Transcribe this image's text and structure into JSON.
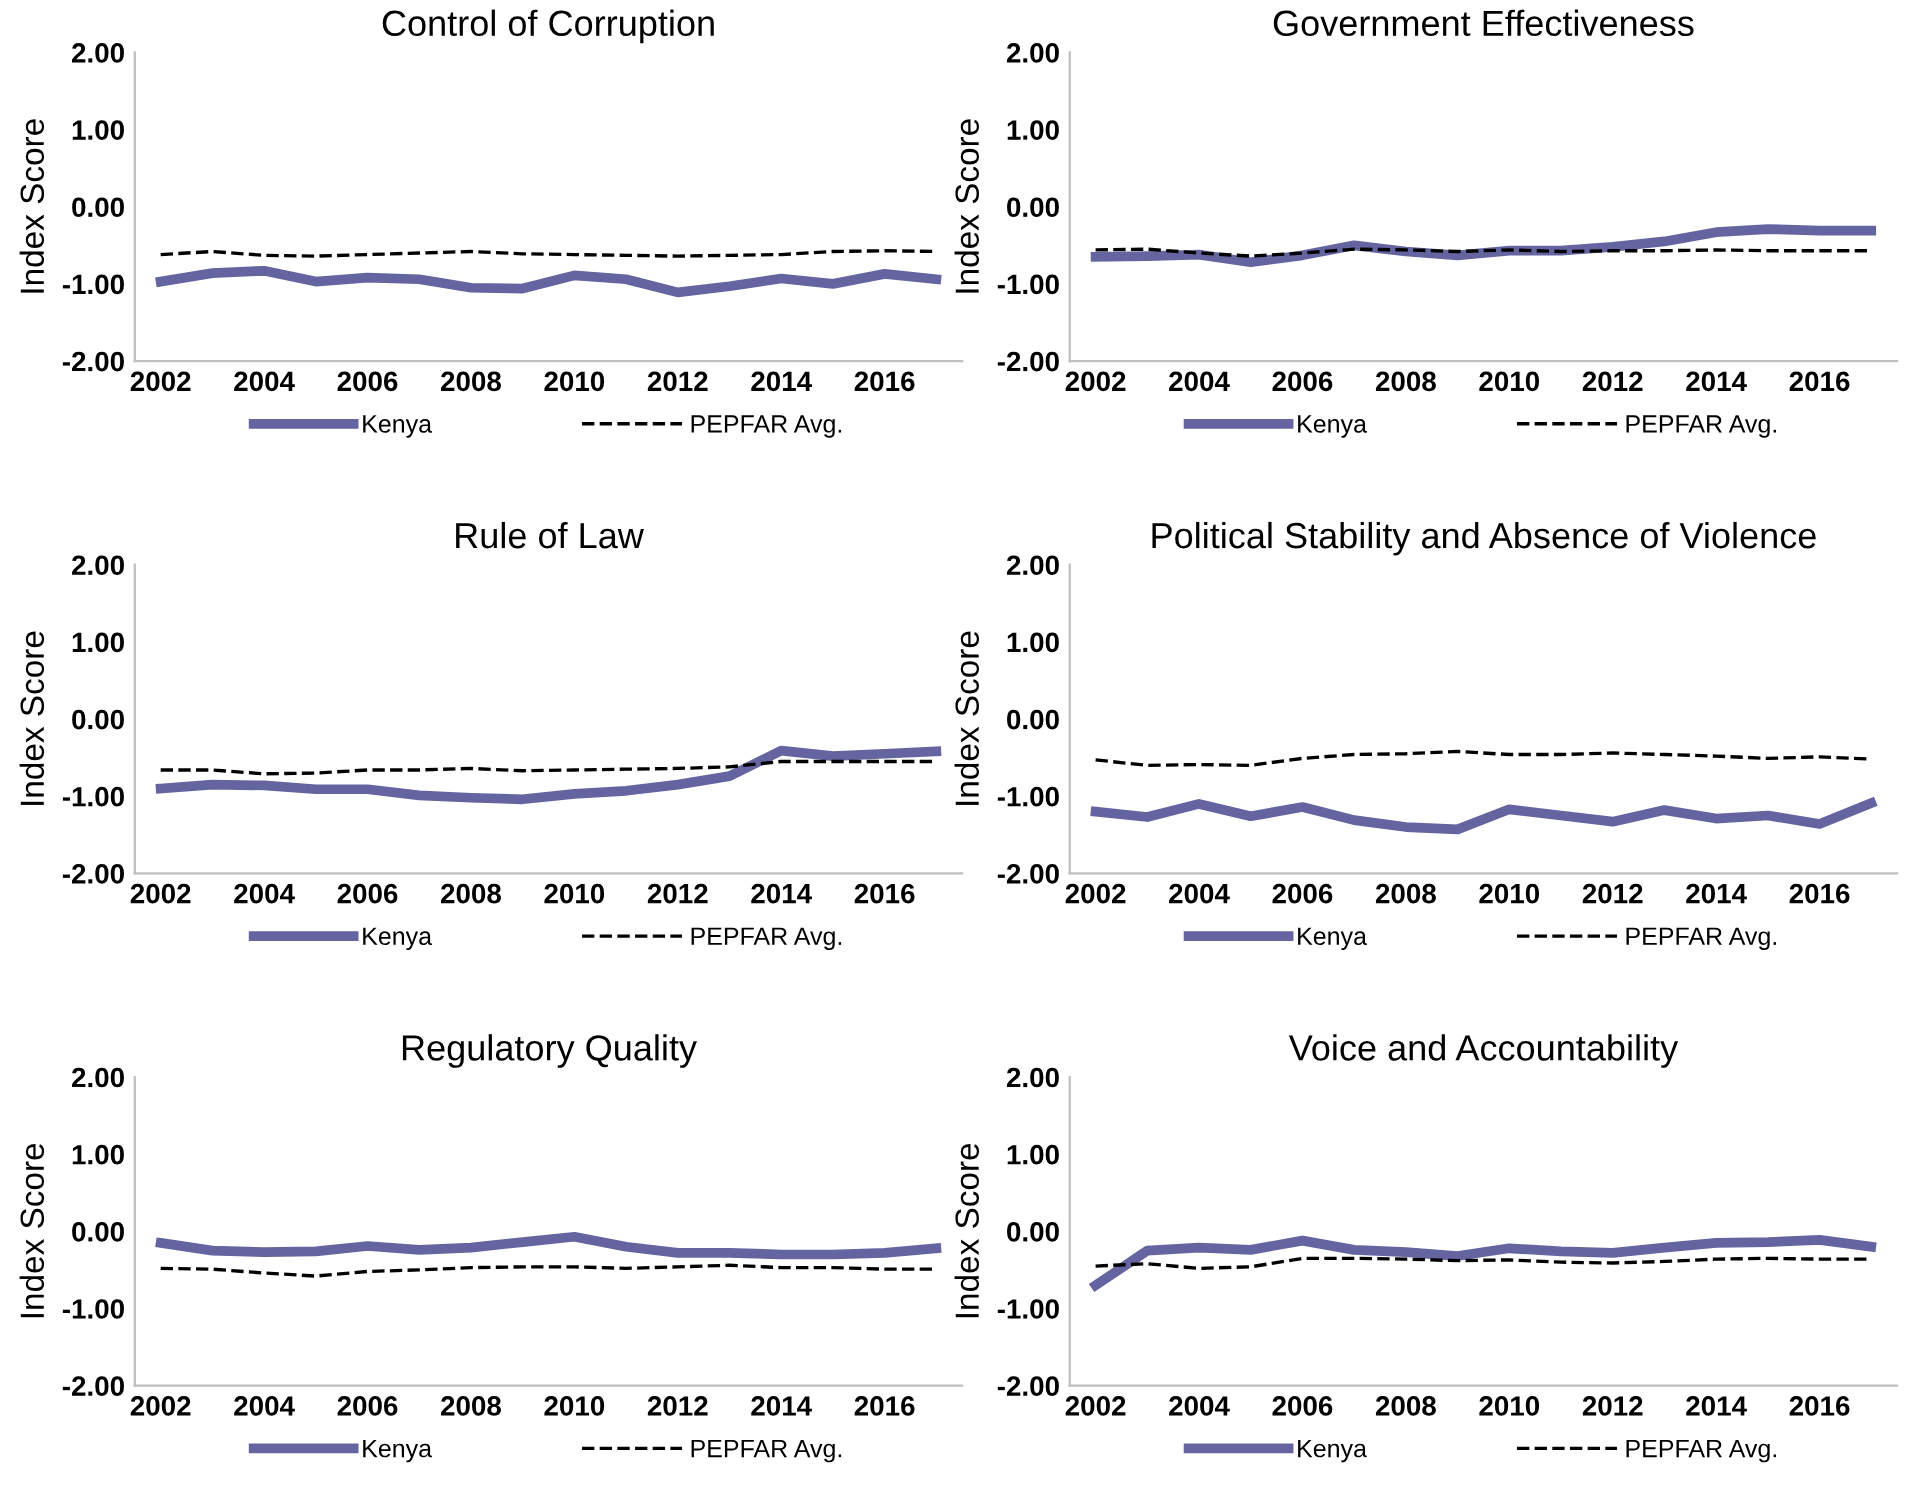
{
  "chart_data": [
    {
      "type": "line",
      "title": "Control of Corruption",
      "ylabel": "Index Score",
      "categories": [
        "2002",
        null,
        "2004",
        null,
        "2006",
        null,
        "2008",
        null,
        "2010",
        null,
        "2012",
        null,
        "2014",
        null,
        "2016",
        null
      ],
      "ylim": [
        -2,
        2
      ],
      "yticks": [
        {
          "value": 2,
          "label": "2.00"
        },
        {
          "value": 1,
          "label": "1.00"
        },
        {
          "value": 0,
          "label": "0.00"
        },
        {
          "value": -1,
          "label": "-1.00"
        },
        {
          "value": -2,
          "label": "-2.00"
        }
      ],
      "legend": "bottom",
      "series": [
        {
          "name": "Kenya",
          "color": "#6464a0",
          "line_style": "solid",
          "values": [
            -0.97,
            -0.86,
            -0.83,
            -0.97,
            -0.92,
            -0.94,
            -1.05,
            -1.06,
            -0.89,
            -0.94,
            -1.11,
            -1.03,
            -0.93,
            -1.0,
            -0.87,
            -0.94
          ]
        },
        {
          "name": "PEPFAR Avg.",
          "color": "#000000",
          "line_style": "dashed",
          "values": [
            -0.62,
            -0.58,
            -0.63,
            -0.64,
            -0.62,
            -0.6,
            -0.58,
            -0.61,
            -0.62,
            -0.63,
            -0.64,
            -0.63,
            -0.62,
            -0.58,
            -0.57,
            -0.58
          ]
        }
      ]
    },
    {
      "type": "line",
      "title": "Government Effectiveness",
      "ylabel": "Index Score",
      "categories": [
        "2002",
        null,
        "2004",
        null,
        "2006",
        null,
        "2008",
        null,
        "2010",
        null,
        "2012",
        null,
        "2014",
        null,
        "2016",
        null
      ],
      "ylim": [
        -2,
        2
      ],
      "yticks": [
        {
          "value": 2,
          "label": "2.00"
        },
        {
          "value": 1,
          "label": "1.00"
        },
        {
          "value": 0,
          "label": "0.00"
        },
        {
          "value": -1,
          "label": "-1.00"
        },
        {
          "value": -2,
          "label": "-2.00"
        }
      ],
      "legend": "bottom",
      "series": [
        {
          "name": "Kenya",
          "color": "#6464a0",
          "line_style": "solid",
          "values": [
            -0.65,
            -0.64,
            -0.62,
            -0.72,
            -0.63,
            -0.5,
            -0.58,
            -0.63,
            -0.57,
            -0.57,
            -0.52,
            -0.45,
            -0.33,
            -0.29,
            -0.31,
            -0.31
          ]
        },
        {
          "name": "PEPFAR Avg.",
          "color": "#000000",
          "line_style": "dashed",
          "values": [
            -0.56,
            -0.55,
            -0.6,
            -0.64,
            -0.6,
            -0.55,
            -0.56,
            -0.58,
            -0.56,
            -0.58,
            -0.57,
            -0.57,
            -0.56,
            -0.57,
            -0.57,
            -0.57
          ]
        }
      ]
    },
    {
      "type": "line",
      "title": "Rule of Law",
      "ylabel": "Index Score",
      "categories": [
        "2002",
        null,
        "2004",
        null,
        "2006",
        null,
        "2008",
        null,
        "2010",
        null,
        "2012",
        null,
        "2014",
        null,
        "2016",
        null
      ],
      "ylim": [
        -2,
        2
      ],
      "yticks": [
        {
          "value": 2,
          "label": "2.00"
        },
        {
          "value": 1,
          "label": "1.00"
        },
        {
          "value": 0,
          "label": "0.00"
        },
        {
          "value": -1,
          "label": "-1.00"
        },
        {
          "value": -2,
          "label": "-2.00"
        }
      ],
      "legend": "bottom",
      "series": [
        {
          "name": "Kenya",
          "color": "#6464a0",
          "line_style": "solid",
          "values": [
            -0.9,
            -0.85,
            -0.86,
            -0.91,
            -0.91,
            -0.99,
            -1.02,
            -1.04,
            -0.97,
            -0.93,
            -0.85,
            -0.74,
            -0.41,
            -0.48,
            -0.45,
            -0.42
          ]
        },
        {
          "name": "PEPFAR Avg.",
          "color": "#000000",
          "line_style": "dashed",
          "values": [
            -0.66,
            -0.66,
            -0.71,
            -0.7,
            -0.66,
            -0.66,
            -0.64,
            -0.67,
            -0.66,
            -0.65,
            -0.64,
            -0.62,
            -0.55,
            -0.55,
            -0.55,
            -0.55
          ]
        }
      ]
    },
    {
      "type": "line",
      "title": "Political Stability and Absence of Violence",
      "ylabel": "Index Score",
      "categories": [
        "2002",
        null,
        "2004",
        null,
        "2006",
        null,
        "2008",
        null,
        "2010",
        null,
        "2012",
        null,
        "2014",
        null,
        "2016",
        null
      ],
      "ylim": [
        -2,
        2
      ],
      "yticks": [
        {
          "value": 2,
          "label": "2.00"
        },
        {
          "value": 1,
          "label": "1.00"
        },
        {
          "value": 0,
          "label": "0.00"
        },
        {
          "value": -1,
          "label": "-1.00"
        },
        {
          "value": -2,
          "label": "-2.00"
        }
      ],
      "legend": "bottom",
      "series": [
        {
          "name": "Kenya",
          "color": "#6464a0",
          "line_style": "solid",
          "values": [
            -1.2,
            -1.27,
            -1.1,
            -1.26,
            -1.14,
            -1.31,
            -1.4,
            -1.43,
            -1.17,
            -1.25,
            -1.33,
            -1.18,
            -1.29,
            -1.25,
            -1.36,
            -1.09
          ]
        },
        {
          "name": "PEPFAR Avg.",
          "color": "#000000",
          "line_style": "dashed",
          "values": [
            -0.53,
            -0.6,
            -0.59,
            -0.6,
            -0.51,
            -0.46,
            -0.45,
            -0.42,
            -0.46,
            -0.46,
            -0.44,
            -0.46,
            -0.48,
            -0.51,
            -0.49,
            -0.52
          ]
        }
      ]
    },
    {
      "type": "line",
      "title": "Regulatory Quality",
      "ylabel": "Index Score",
      "categories": [
        "2002",
        null,
        "2004",
        null,
        "2006",
        null,
        "2008",
        null,
        "2010",
        null,
        "2012",
        null,
        "2014",
        null,
        "2016",
        null
      ],
      "ylim": [
        -2,
        2
      ],
      "yticks": [
        {
          "value": 2,
          "label": "2.00"
        },
        {
          "value": 1,
          "label": "1.00"
        },
        {
          "value": 0,
          "label": "0.00"
        },
        {
          "value": -1,
          "label": "-1.00"
        },
        {
          "value": -2,
          "label": "-2.00"
        }
      ],
      "legend": "bottom",
      "series": [
        {
          "name": "Kenya",
          "color": "#6464a0",
          "line_style": "solid",
          "values": [
            -0.15,
            -0.25,
            -0.27,
            -0.26,
            -0.19,
            -0.24,
            -0.21,
            -0.14,
            -0.07,
            -0.2,
            -0.28,
            -0.28,
            -0.3,
            -0.3,
            -0.28,
            -0.22
          ]
        },
        {
          "name": "PEPFAR Avg.",
          "color": "#000000",
          "line_style": "dashed",
          "values": [
            -0.48,
            -0.49,
            -0.54,
            -0.58,
            -0.52,
            -0.5,
            -0.47,
            -0.46,
            -0.46,
            -0.48,
            -0.46,
            -0.44,
            -0.47,
            -0.47,
            -0.49,
            -0.49
          ]
        }
      ]
    },
    {
      "type": "line",
      "title": "Voice and Accountability",
      "ylabel": "Index Score",
      "categories": [
        "2002",
        null,
        "2004",
        null,
        "2006",
        null,
        "2008",
        null,
        "2010",
        null,
        "2012",
        null,
        "2014",
        null,
        "2016",
        null
      ],
      "ylim": [
        -2,
        2
      ],
      "yticks": [
        {
          "value": 2,
          "label": "2.00"
        },
        {
          "value": 1,
          "label": "1.00"
        },
        {
          "value": 0,
          "label": "0.00"
        },
        {
          "value": -1,
          "label": "-1.00"
        },
        {
          "value": -2,
          "label": "-2.00"
        }
      ],
      "legend": "bottom",
      "series": [
        {
          "name": "Kenya",
          "color": "#6464a0",
          "line_style": "solid",
          "values": [
            -0.7,
            -0.25,
            -0.21,
            -0.24,
            -0.12,
            -0.24,
            -0.27,
            -0.32,
            -0.22,
            -0.26,
            -0.28,
            -0.21,
            -0.15,
            -0.14,
            -0.11,
            -0.2
          ]
        },
        {
          "name": "PEPFAR Avg.",
          "color": "#000000",
          "line_style": "dashed",
          "values": [
            -0.45,
            -0.42,
            -0.48,
            -0.46,
            -0.35,
            -0.35,
            -0.36,
            -0.38,
            -0.37,
            -0.4,
            -0.41,
            -0.39,
            -0.36,
            -0.35,
            -0.36,
            -0.36
          ]
        }
      ]
    }
  ]
}
